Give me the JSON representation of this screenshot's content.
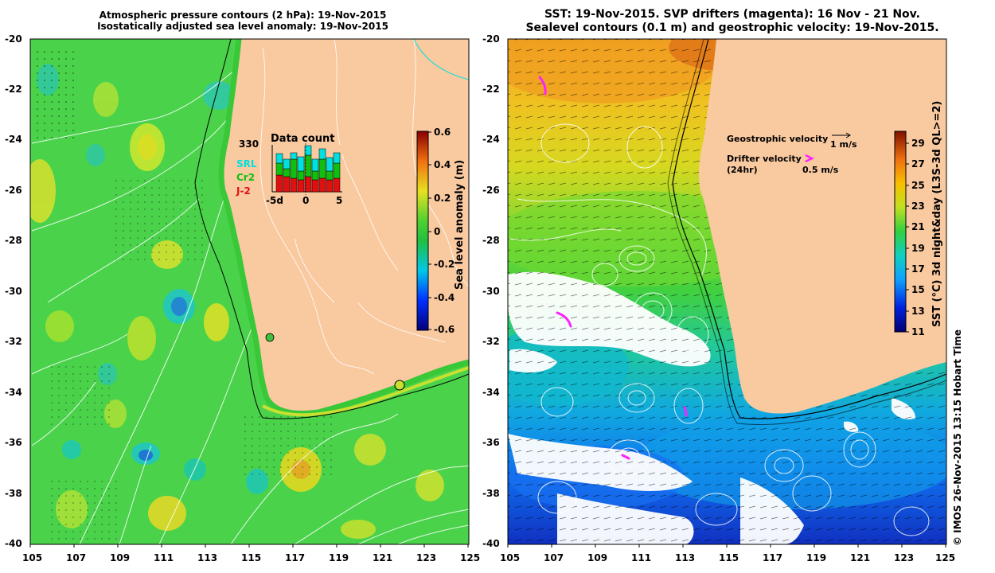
{
  "left_panel": {
    "title_line1": "Atmospheric pressure contours (2 hPa): 19-Nov-2015",
    "title_line2": "Isostatically adjusted sea level anomaly: 19-Nov-2015",
    "colorbar_label": "Sea level anomaly (m)",
    "colorbar_ticks": [
      "0.6",
      "0.4",
      "0.2",
      "0",
      "-0.2",
      "-0.4",
      "-0.6"
    ],
    "colorbar_range": [
      -0.6,
      0.6
    ],
    "inset": {
      "title": "Data count",
      "max_count": "330",
      "legend": [
        "SRL",
        "Cr2",
        "J-2"
      ],
      "legend_colors": [
        "#00e0e0",
        "#10c010",
        "#e01010"
      ],
      "x_ticks": [
        "-5d",
        "0",
        "5"
      ]
    }
  },
  "right_panel": {
    "title_line1": "SST: 19-Nov-2015. SVP drifters (magenta): 16 Nov - 21 Nov.",
    "title_line2": "Sealevel contours (0.1 m) and geostrophic velocity: 19-Nov-2015.",
    "colorbar_label": "SST (°C) 3d night&day (L3S-3d QL>=2)",
    "colorbar_ticks": [
      "29",
      "27",
      "25",
      "23",
      "21",
      "19",
      "17",
      "15",
      "13",
      "11"
    ],
    "colorbar_range": [
      11,
      30
    ],
    "legend": {
      "geo_label": "Geostrophic velocity",
      "geo_scale": "1 m/s",
      "drifter_label_line1": "Drifter velocity",
      "drifter_label_line2": "(24hr)",
      "drifter_scale": "0.5 m/s"
    }
  },
  "axes": {
    "lon_ticks": [
      "105",
      "107",
      "109",
      "111",
      "113",
      "115",
      "117",
      "119",
      "121",
      "123",
      "125"
    ],
    "lat_ticks": [
      "-20",
      "-22",
      "-24",
      "-26",
      "-28",
      "-30",
      "-32",
      "-34",
      "-36",
      "-38",
      "-40"
    ]
  },
  "credit": "© IMOS 26-Nov-2015 13:15 Hobart Time",
  "colors": {
    "land": "#f9c9a0",
    "ocean_green": "#4ad24a",
    "magenta": "#ff20ff"
  }
}
